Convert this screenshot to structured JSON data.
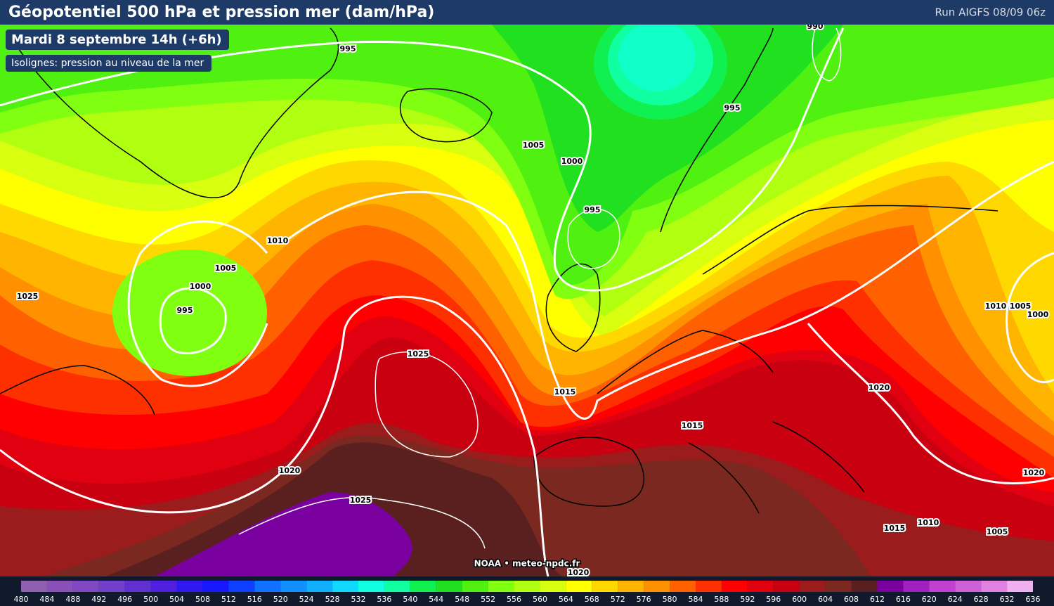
{
  "header": {
    "title": "Géopotentiel 500 hPa et pression mer (dam/hPa)",
    "run": "Run AIGFS 08/09 06z"
  },
  "badges": {
    "time": "Mardi 8 septembre 14h (+6h)",
    "isolines": "Isolignes: pression au niveau de la mer"
  },
  "isobar_labels": [
    995,
    990,
    995,
    1005,
    1000,
    995,
    1010,
    1005,
    1000,
    995,
    1025,
    1025,
    1015,
    1015,
    1020,
    1020,
    1025,
    1010,
    1005,
    1000,
    1020,
    1015,
    1010,
    1005,
    1020
  ],
  "credit": "NOAA • meteo-npdc.fr",
  "colorbar": {
    "ticks": [
      480,
      484,
      488,
      492,
      496,
      500,
      504,
      508,
      512,
      516,
      520,
      524,
      528,
      532,
      536,
      540,
      544,
      548,
      552,
      556,
      560,
      564,
      568,
      572,
      576,
      580,
      584,
      588,
      592,
      596,
      600,
      604,
      608,
      612,
      616,
      620,
      624,
      628,
      632,
      636
    ],
    "colors": [
      "#9060b0",
      "#8a50b8",
      "#8048c0",
      "#7040c8",
      "#6030d0",
      "#5020e0",
      "#3018f0",
      "#1818ff",
      "#1040ff",
      "#1070ff",
      "#1090ff",
      "#10b0ff",
      "#10d8ff",
      "#10ffe0",
      "#10ffa0",
      "#10f050",
      "#20e020",
      "#50f010",
      "#80ff10",
      "#b0ff10",
      "#d8ff10",
      "#ffff00",
      "#ffd800",
      "#ffb400",
      "#ff9000",
      "#ff6000",
      "#ff3000",
      "#ff0000",
      "#e00010",
      "#c80010",
      "#9a1c1c",
      "#7a2820",
      "#5a2020",
      "#7a00a0",
      "#a020c0",
      "#c040d0",
      "#d060d8",
      "#e080e0",
      "#f0b0f0"
    ]
  }
}
